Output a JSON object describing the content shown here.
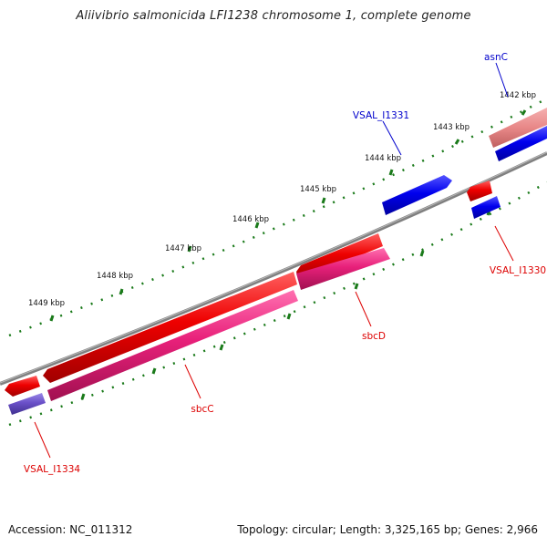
{
  "title": "Aliivibrio salmonicida LFI1238 chromosome 1, complete genome",
  "footer": {
    "accession": "Accession: NC_011312",
    "summary": "Topology: circular; Length: 3,325,165 bp; Genes: 2,966"
  },
  "ruler_labels": [
    "1442 kbp",
    "1443 kbp",
    "1444 kbp",
    "1445 kbp",
    "1446 kbp",
    "1447 kbp",
    "1448 kbp",
    "1449 kbp"
  ],
  "genes": [
    {
      "name": "asnC",
      "label_color": "#0000cc"
    },
    {
      "name": "VSAL_I1331",
      "label_color": "#0000cc"
    },
    {
      "name": "VSAL_I1330",
      "label_color": "#dd0000"
    },
    {
      "name": "sbcD",
      "label_color": "#dd0000"
    },
    {
      "name": "sbcC",
      "label_color": "#dd0000"
    },
    {
      "name": "VSAL_I1334",
      "label_color": "#dd0000"
    }
  ],
  "colors": {
    "backbone": "#808080",
    "ruler_ticks": "#1a7a1a",
    "forward_gene": "#0000ee",
    "reverse_gene": "#ee0000",
    "cds_reverse": "#e8207a",
    "cds_forward": "#6a50c8",
    "faded_gene": "#e88888"
  }
}
